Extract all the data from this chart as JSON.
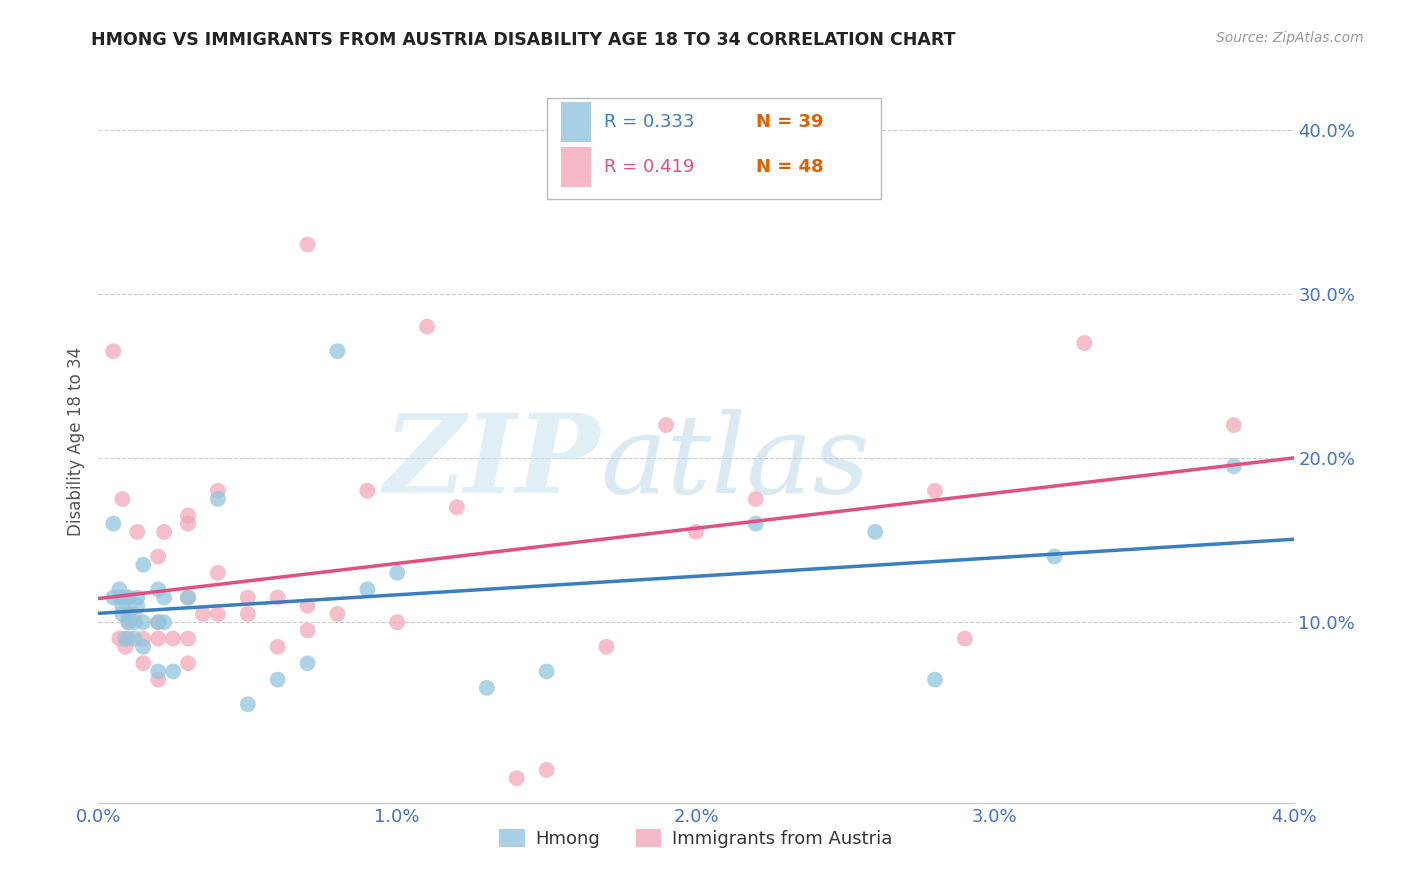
{
  "title": "HMONG VS IMMIGRANTS FROM AUSTRIA DISABILITY AGE 18 TO 34 CORRELATION CHART",
  "source_text": "Source: ZipAtlas.com",
  "ylabel": "Disability Age 18 to 34",
  "xlim": [
    0.0,
    0.04
  ],
  "ylim": [
    -0.01,
    0.43
  ],
  "x_ticks": [
    0.0,
    0.01,
    0.02,
    0.03,
    0.04
  ],
  "x_tick_labels": [
    "0.0%",
    "1.0%",
    "2.0%",
    "3.0%",
    "4.0%"
  ],
  "y_ticks": [
    0.0,
    0.1,
    0.2,
    0.3,
    0.4
  ],
  "y_tick_labels": [
    "",
    "10.0%",
    "20.0%",
    "30.0%",
    "40.0%"
  ],
  "hmong_R": "0.333",
  "hmong_N": "39",
  "austria_R": "0.419",
  "austria_N": "48",
  "hmong_color": "#92c5de",
  "austria_color": "#f4a7b9",
  "hmong_line_color": "#3a7ebf",
  "austria_line_color": "#e05080",
  "hmong_N_color": "#e06000",
  "austria_N_color": "#e06000",
  "tick_label_color": "#4472c4",
  "background_color": "#ffffff",
  "hmong_x": [
    0.0005,
    0.0005,
    0.0007,
    0.0007,
    0.0008,
    0.0008,
    0.0008,
    0.0009,
    0.001,
    0.001,
    0.001,
    0.0012,
    0.0012,
    0.0013,
    0.0013,
    0.0015,
    0.0015,
    0.0015,
    0.002,
    0.002,
    0.002,
    0.0022,
    0.0022,
    0.0025,
    0.003,
    0.004,
    0.005,
    0.006,
    0.007,
    0.008,
    0.009,
    0.01,
    0.013,
    0.015,
    0.022,
    0.026,
    0.028,
    0.032,
    0.038
  ],
  "hmong_y": [
    0.16,
    0.115,
    0.115,
    0.12,
    0.105,
    0.11,
    0.115,
    0.09,
    0.1,
    0.105,
    0.115,
    0.09,
    0.1,
    0.11,
    0.115,
    0.085,
    0.1,
    0.135,
    0.07,
    0.1,
    0.12,
    0.1,
    0.115,
    0.07,
    0.115,
    0.175,
    0.05,
    0.065,
    0.075,
    0.265,
    0.12,
    0.13,
    0.06,
    0.07,
    0.16,
    0.155,
    0.065,
    0.14,
    0.195
  ],
  "austria_x": [
    0.0005,
    0.0007,
    0.0008,
    0.0009,
    0.001,
    0.001,
    0.001,
    0.0012,
    0.0013,
    0.0015,
    0.0015,
    0.002,
    0.002,
    0.002,
    0.002,
    0.0022,
    0.0025,
    0.003,
    0.003,
    0.003,
    0.003,
    0.003,
    0.0035,
    0.004,
    0.004,
    0.004,
    0.005,
    0.005,
    0.006,
    0.006,
    0.007,
    0.007,
    0.007,
    0.008,
    0.009,
    0.01,
    0.011,
    0.012,
    0.014,
    0.015,
    0.017,
    0.019,
    0.02,
    0.022,
    0.028,
    0.029,
    0.033,
    0.038
  ],
  "austria_y": [
    0.265,
    0.09,
    0.175,
    0.085,
    0.09,
    0.1,
    0.115,
    0.105,
    0.155,
    0.075,
    0.09,
    0.065,
    0.09,
    0.1,
    0.14,
    0.155,
    0.09,
    0.075,
    0.09,
    0.115,
    0.16,
    0.165,
    0.105,
    0.105,
    0.13,
    0.18,
    0.105,
    0.115,
    0.085,
    0.115,
    0.095,
    0.11,
    0.33,
    0.105,
    0.18,
    0.1,
    0.28,
    0.17,
    0.005,
    0.01,
    0.085,
    0.22,
    0.155,
    0.175,
    0.18,
    0.09,
    0.27,
    0.22
  ]
}
